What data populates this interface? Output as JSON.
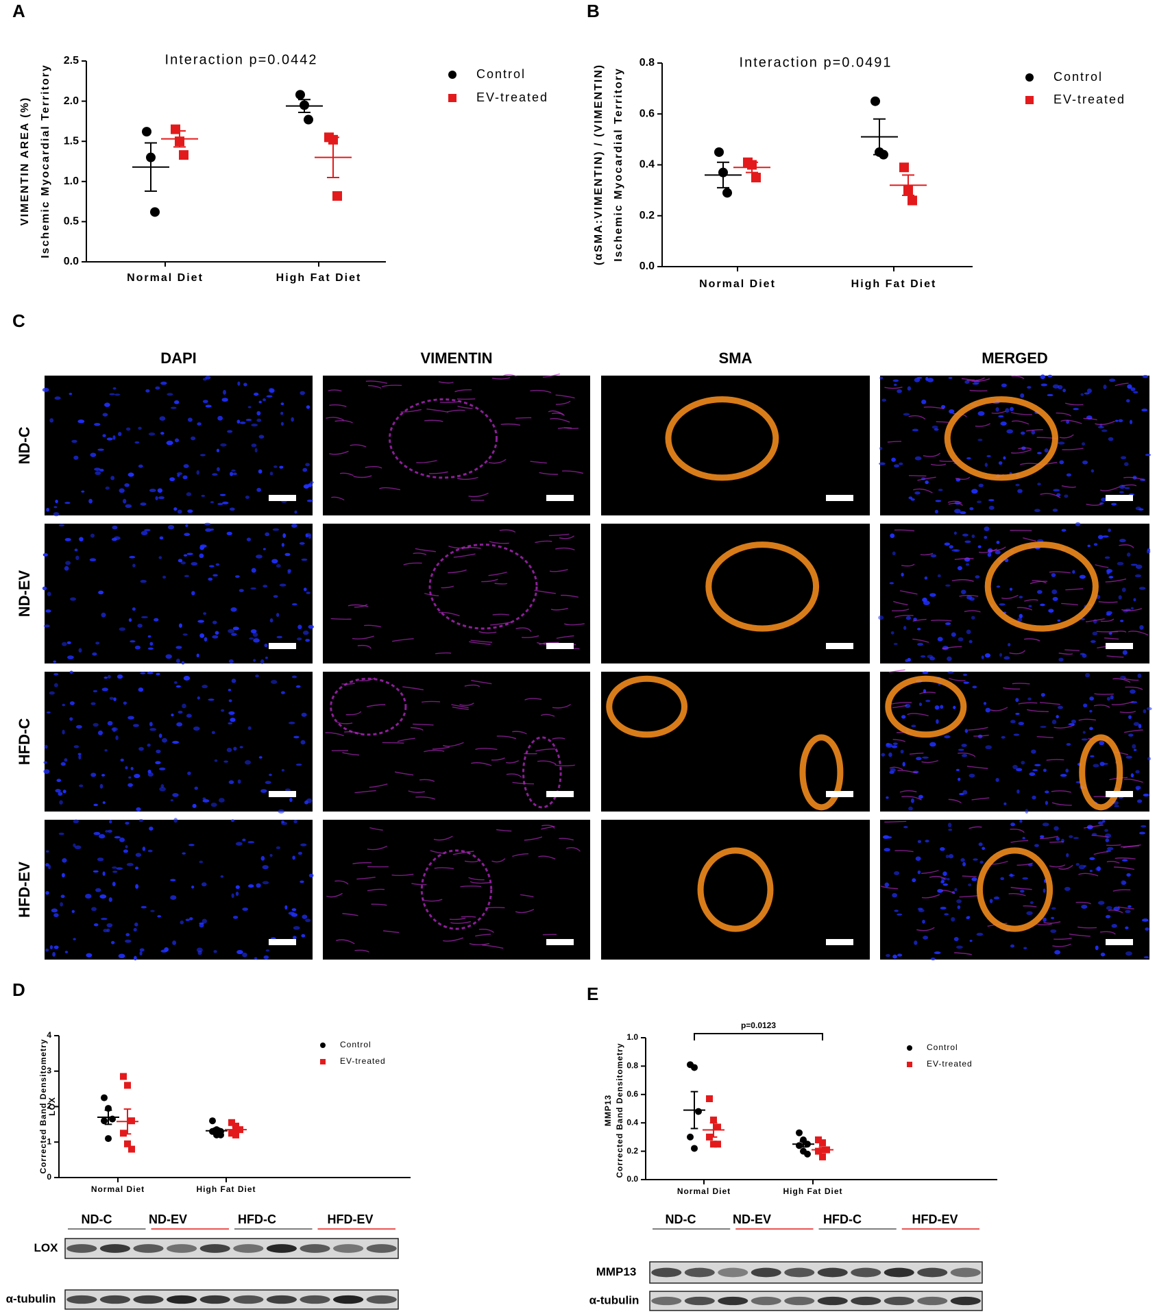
{
  "chart_data": [
    {
      "type": "dot",
      "label": "A",
      "annotation": "Interaction p=0.0442",
      "ylabel": [
        "VIMENTIN AREA (%)",
        "Ischemic Myocardial Territory"
      ],
      "categories": [
        "Normal Diet",
        "High Fat Diet"
      ],
      "series": [
        {
          "name": "Control",
          "color": "#000000",
          "marker": "circle",
          "values": [
            [
              1.62,
              1.3,
              0.62
            ],
            [
              2.08,
              1.95,
              1.77
            ]
          ],
          "mean": [
            1.18,
            1.94
          ],
          "sem": [
            0.3,
            0.08
          ]
        },
        {
          "name": "EV-treated",
          "color": "#e31a1c",
          "marker": "square",
          "values": [
            [
              1.65,
              1.5,
              1.33
            ],
            [
              1.55,
              1.52,
              0.82
            ]
          ],
          "mean": [
            1.53,
            1.3
          ],
          "sem": [
            0.1,
            0.25
          ]
        }
      ],
      "ylim": [
        0,
        2.5
      ],
      "yticks": [
        {
          "value": 0,
          "label": "0.0"
        },
        0.5,
        {
          "value": 1,
          "label": "1.0"
        },
        1.5,
        {
          "value": 2,
          "label": "2.0"
        },
        2.5
      ]
    },
    {
      "type": "dot",
      "label": "B",
      "annotation": "Interaction p=0.0491",
      "ylabel": [
        "(αSMA:VIMENTIN) / (VIMENTIN)",
        "Ischemic Myocardial Territory"
      ],
      "categories": [
        "Normal Diet",
        "High Fat Diet"
      ],
      "series": [
        {
          "name": "Control",
          "color": "#000000",
          "marker": "circle",
          "values": [
            [
              0.45,
              0.37,
              0.29
            ],
            [
              0.65,
              0.45,
              0.44
            ]
          ],
          "mean": [
            0.36,
            0.51
          ],
          "sem": [
            0.05,
            0.07
          ]
        },
        {
          "name": "EV-treated",
          "color": "#e31a1c",
          "marker": "square",
          "values": [
            [
              0.41,
              0.4,
              0.35
            ],
            [
              0.39,
              0.3,
              0.26
            ]
          ],
          "mean": [
            0.39,
            0.32
          ],
          "sem": [
            0.02,
            0.04
          ]
        }
      ],
      "ylim": [
        0,
        0.8
      ],
      "yticks": [
        {
          "value": 0,
          "label": "0.0"
        },
        0.2,
        0.4,
        0.6,
        0.8
      ]
    },
    {
      "type": "dot",
      "label": "D",
      "ylabel": [
        "Corrected Band Densitometry",
        "LOX"
      ],
      "categories": [
        "Normal Diet",
        "High Fat Diet"
      ],
      "series": [
        {
          "name": "Control",
          "color": "#000000",
          "marker": "circle",
          "values": [
            [
              2.25,
              1.95,
              1.65,
              1.6,
              1.1
            ],
            [
              1.6,
              1.35,
              1.3,
              1.3,
              1.2,
              1.2
            ]
          ],
          "mean": [
            1.7,
            1.32
          ],
          "sem": [
            0.2,
            0.07
          ]
        },
        {
          "name": "EV-treated",
          "color": "#e31a1c",
          "marker": "square",
          "values": [
            [
              2.85,
              2.6,
              1.6,
              1.25,
              0.95,
              0.8
            ],
            [
              1.55,
              1.45,
              1.35,
              1.25,
              1.2
            ]
          ],
          "mean": [
            1.58,
            1.35
          ],
          "sem": [
            0.35,
            0.08
          ]
        }
      ],
      "ylim": [
        0,
        4
      ],
      "yticks": [
        0,
        1,
        2,
        3,
        4
      ]
    },
    {
      "type": "dot",
      "label": "E",
      "bracket_label": "p=0.0123",
      "ylabel": [
        "MMP13",
        "Corrected Band Densitometry"
      ],
      "categories": [
        "Normal Diet",
        "High Fat Diet"
      ],
      "series": [
        {
          "name": "Control",
          "color": "#000000",
          "marker": "circle",
          "values": [
            [
              0.81,
              0.79,
              0.48,
              0.3,
              0.22
            ],
            [
              0.33,
              0.28,
              0.25,
              0.24,
              0.2,
              0.18
            ]
          ],
          "mean": [
            0.49,
            0.25
          ],
          "sem": [
            0.13,
            0.02
          ]
        },
        {
          "name": "EV-treated",
          "color": "#e31a1c",
          "marker": "square",
          "values": [
            [
              0.57,
              0.42,
              0.37,
              0.3,
              0.25,
              0.25
            ],
            [
              0.28,
              0.26,
              0.21,
              0.2,
              0.16
            ]
          ],
          "mean": [
            0.35,
            0.21
          ],
          "sem": [
            0.05,
            0.02
          ]
        }
      ],
      "ylim": [
        0,
        1
      ],
      "yticks": [
        {
          "value": 0,
          "label": "0.0"
        },
        0.2,
        0.4,
        0.6,
        0.8,
        {
          "value": 1,
          "label": "1.0"
        }
      ]
    }
  ],
  "panel_c": {
    "label": "C",
    "columns": [
      "DAPI",
      "VIMENTIN",
      "SMA",
      "MERGED"
    ],
    "rows": [
      "ND-C",
      "ND-EV",
      "HFD-C",
      "HFD-EV"
    ]
  },
  "blots": [
    {
      "lanes": [
        "ND-C",
        "ND-EV",
        "HFD-C",
        "HFD-EV"
      ],
      "rows": [
        "LOX",
        "α-tubulin"
      ]
    },
    {
      "lanes": [
        "ND-C",
        "ND-EV",
        "HFD-C",
        "HFD-EV"
      ],
      "rows": [
        "MMP13",
        "α-tubulin"
      ]
    }
  ]
}
